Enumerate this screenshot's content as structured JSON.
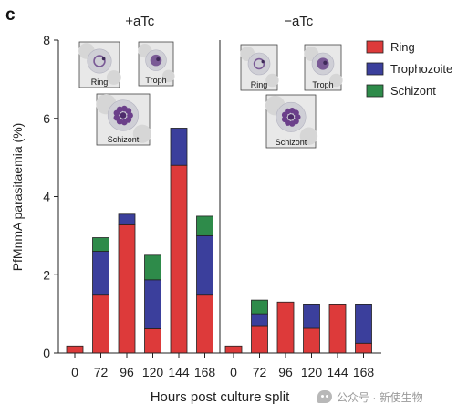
{
  "panel_letter": "c",
  "chart_data": {
    "type": "bar",
    "stacked": true,
    "ylabel": "PfMnmA parasitaemia (%)",
    "xlabel": "Hours post culture split",
    "ylim": [
      0,
      8
    ],
    "yticks": [
      0,
      2,
      4,
      6,
      8
    ],
    "categories": [
      "0",
      "72",
      "96",
      "120",
      "144",
      "168"
    ],
    "legend": {
      "placement": "top-right"
    },
    "series_names": [
      "Ring",
      "Trophozoite",
      "Schizont"
    ],
    "colors": {
      "Ring": "#dd3a3a",
      "Trophozoite": "#3b3f9c",
      "Schizont": "#2e8b4a"
    },
    "groups": [
      {
        "label": "+aTc",
        "series": [
          {
            "name": "Ring",
            "values": [
              0.18,
              1.5,
              3.28,
              0.62,
              4.8,
              1.5
            ]
          },
          {
            "name": "Trophozoite",
            "values": [
              0,
              1.1,
              0.27,
              1.25,
              0.95,
              1.5
            ]
          },
          {
            "name": "Schizont",
            "values": [
              0,
              0.35,
              0,
              0.63,
              0,
              0.5
            ]
          }
        ],
        "images": [
          "Ring",
          "Troph",
          "Schizont"
        ]
      },
      {
        "label": "−aTc",
        "series": [
          {
            "name": "Ring",
            "values": [
              0.18,
              0.7,
              1.3,
              0.63,
              1.25,
              0.25
            ]
          },
          {
            "name": "Trophozoite",
            "values": [
              0,
              0.3,
              0,
              0.62,
              0,
              1.0
            ]
          },
          {
            "name": "Schizont",
            "values": [
              0,
              0.35,
              0,
              0,
              0,
              0
            ]
          }
        ],
        "images": [
          "Ring",
          "Troph",
          "Schizont"
        ]
      }
    ]
  },
  "watermark": {
    "text": "公众号 · 新使生物"
  }
}
